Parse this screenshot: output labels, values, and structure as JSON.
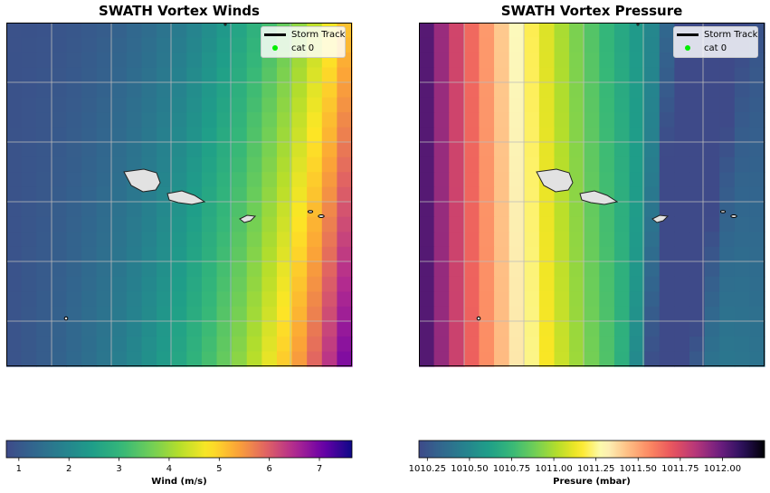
{
  "chart_data": [
    {
      "type": "heatmap",
      "title": "SWATH Vortex Winds",
      "colorbar_label": "Wind (m/s)",
      "colorbar_ticks": [
        "1",
        "2",
        "3",
        "4",
        "5",
        "6",
        "7"
      ],
      "colorbar_tick_values": [
        1,
        2,
        3,
        4,
        5,
        6,
        7
      ],
      "vmin": 0.75,
      "vmax": 7.65,
      "colormap": [
        "#3e4a89",
        "#31688e",
        "#26828e",
        "#1f9e89",
        "#35b779",
        "#6ece58",
        "#b5de2b",
        "#fde725",
        "#fca636",
        "#e16462",
        "#b12a90",
        "#6a00a8",
        "#0d0887"
      ],
      "grid": true,
      "legend": {
        "placement": "top-right",
        "entries": [
          {
            "label": "Storm Track",
            "marker": "line",
            "color": "#000000"
          },
          {
            "label": "cat 0",
            "marker": "dot",
            "color": "#00ee00"
          }
        ]
      },
      "field_description": "values increase from left (about 1) to right, peaking near 7 at the lower-right corner"
    },
    {
      "type": "heatmap",
      "title": "SWATH Vortex Pressure",
      "colorbar_label": "Presure (mbar)",
      "colorbar_ticks": [
        "1010.25",
        "1010.50",
        "1010.75",
        "1011.00",
        "1011.25",
        "1011.50",
        "1011.75",
        "1012.00"
      ],
      "colorbar_tick_values": [
        1010.25,
        1010.5,
        1010.75,
        1011.0,
        1011.25,
        1011.5,
        1011.75,
        1012.0
      ],
      "vmin": 1010.2,
      "vmax": 1012.25,
      "colormap": [
        "#3e4a89",
        "#31688e",
        "#26828e",
        "#1f9e89",
        "#35b779",
        "#6ece58",
        "#b5de2b",
        "#fde725",
        "#fcfdbf",
        "#fec287",
        "#fc8961",
        "#e8535d",
        "#b73779",
        "#721f81",
        "#2c115f",
        "#000004"
      ],
      "grid": true,
      "legend": {
        "placement": "top-right",
        "entries": [
          {
            "label": "Storm Track",
            "marker": "line",
            "color": "#000000"
          },
          {
            "label": "cat 0",
            "marker": "dot",
            "color": "#00ee00"
          }
        ]
      }
    }
  ]
}
